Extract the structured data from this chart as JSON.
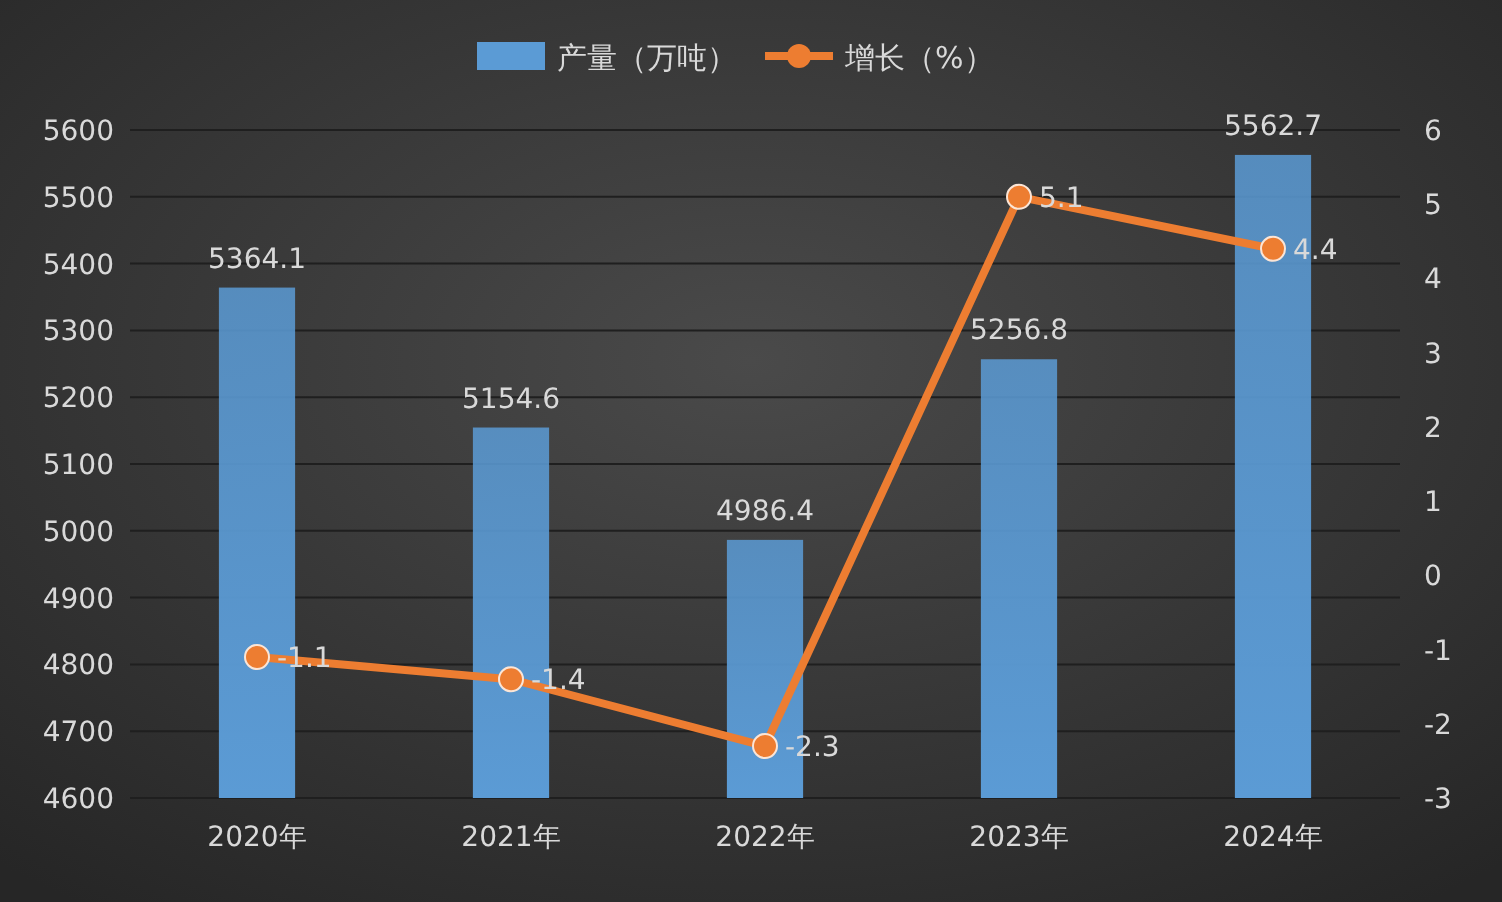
{
  "chart_data": {
    "type": "bar",
    "categories": [
      "2020年",
      "2021年",
      "2022年",
      "2023年",
      "2024年"
    ],
    "series": [
      {
        "name": "产量（万吨）",
        "color": "#5b9bd5",
        "values": [
          5364.1,
          5154.6,
          4986.4,
          5256.8,
          5562.7
        ]
      },
      {
        "name": "增长（%）",
        "type": "line",
        "axis": "y2",
        "color": "#ed7d31",
        "values": [
          -1.1,
          -1.4,
          -2.3,
          5.1,
          4.4
        ]
      }
    ],
    "ylim": [
      4600,
      5600
    ],
    "yticks": [
      4600,
      4700,
      4800,
      4900,
      5000,
      5100,
      5200,
      5300,
      5400,
      5500,
      5600
    ],
    "y2lim": [
      -3,
      6
    ],
    "y2ticks": [
      -3,
      -2,
      -1,
      0,
      1,
      2,
      3,
      4,
      5,
      6
    ],
    "grid": "y",
    "legend": "top",
    "marker": "circle",
    "line_style": "solid",
    "data_labels": true
  }
}
